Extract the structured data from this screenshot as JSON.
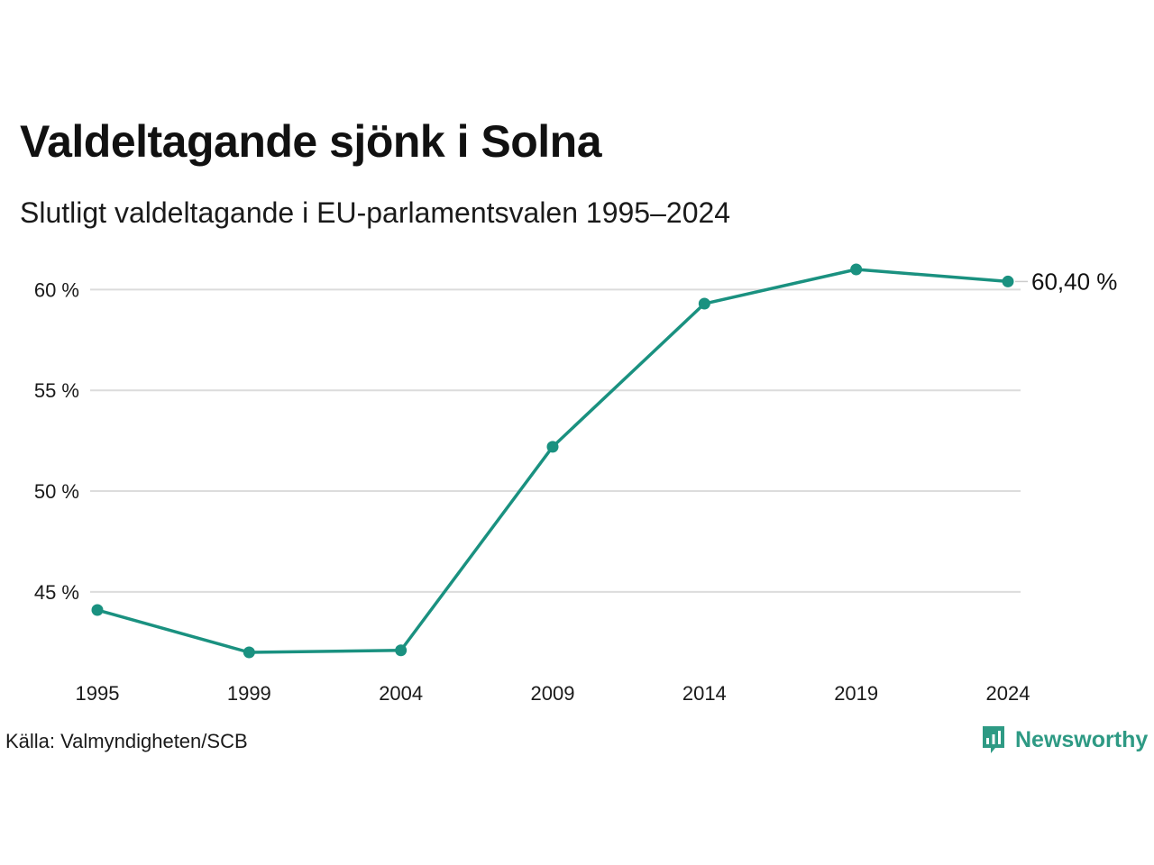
{
  "title": "Valdeltagande sjönk i Solna",
  "subtitle": "Slutligt valdeltagande i EU-parlamentsvalen 1995–2024",
  "source": "Källa: Valmyndigheten/SCB",
  "logo": {
    "text": "Newsworthy",
    "icon": "bar-chart-speech-bubble-icon",
    "color": "#2e9a84"
  },
  "chart_data": {
    "type": "line",
    "x": [
      "1995",
      "1999",
      "2004",
      "2009",
      "2014",
      "2019",
      "2024"
    ],
    "series": [
      {
        "values": [
          44.1,
          42.0,
          42.1,
          52.2,
          59.3,
          61.0,
          60.4
        ],
        "color": "#1a9180"
      }
    ],
    "y_ticks": [
      45,
      50,
      55,
      60
    ],
    "y_tick_labels": [
      "45 %",
      "50 %",
      "55 %",
      "60 %"
    ],
    "ylim": [
      41.2,
      62.0
    ],
    "grid": true,
    "end_label": "60,40 %",
    "xlabel": "",
    "ylabel": ""
  }
}
